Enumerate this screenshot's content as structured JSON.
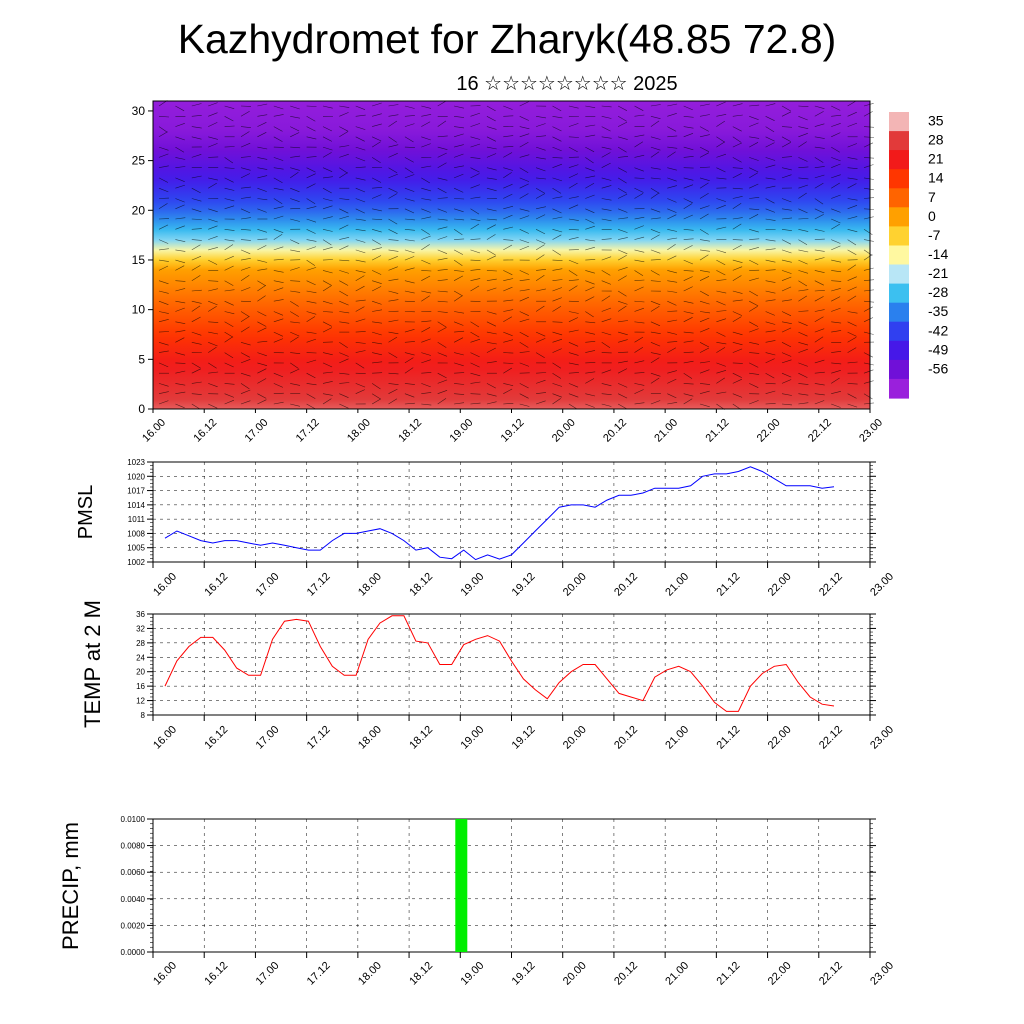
{
  "header": {
    "title": "Kazhydromet for Zharyk(48.85 72.8)",
    "subtitle": "16 ☆☆☆☆☆☆☆☆ 2025"
  },
  "time_ticks": [
    "16.00",
    "16.12",
    "17.00",
    "17.12",
    "18.00",
    "18.12",
    "19.00",
    "19.12",
    "20.00",
    "20.12",
    "21.00",
    "21.12",
    "22.00",
    "22.12",
    "23.00"
  ],
  "chart_data": [
    {
      "id": "cross-section",
      "type": "heatmap",
      "title": "Kazhydromet for Zharyk(48.85 72.8)",
      "subtitle": "16 ☆☆☆☆☆☆☆☆ 2025",
      "x_ticks": [
        "16.00",
        "16.12",
        "17.00",
        "17.12",
        "18.00",
        "18.12",
        "19.00",
        "19.12",
        "20.00",
        "20.12",
        "21.00",
        "21.12",
        "22.00",
        "22.12",
        "23.00"
      ],
      "y_ticks": [
        0,
        5,
        10,
        15,
        20,
        25,
        30
      ],
      "ylim": [
        0,
        31
      ],
      "xlabel": "",
      "ylabel": "",
      "colorbar": {
        "labels": [
          "35",
          "28",
          "21",
          "14",
          "7",
          "0",
          "-7",
          "-14",
          "-21",
          "-28",
          "-35",
          "-42",
          "-49",
          "-56"
        ],
        "values": [
          35,
          28,
          21,
          14,
          7,
          0,
          -7,
          -14,
          -21,
          -28,
          -35,
          -42,
          -49,
          -56
        ],
        "colors": [
          "#f3b5b5",
          "#e23a3a",
          "#f21a1a",
          "#ff3600",
          "#ff6400",
          "#ffa000",
          "#ffd230",
          "#fff8a0",
          "#b8e6f6",
          "#3cc0f0",
          "#2a80ee",
          "#3040f0",
          "#4618e8",
          "#7010d8",
          "#9a20dc"
        ]
      },
      "temperature_profile": {
        "height": [
          0,
          5,
          10,
          14,
          15.5,
          17,
          20,
          23,
          26,
          28,
          31
        ],
        "value": [
          30,
          20,
          8,
          0,
          -10,
          -24,
          -38,
          -48,
          -56,
          -60,
          -62
        ]
      },
      "overlay": "wind barbs"
    },
    {
      "id": "pmsl",
      "type": "line",
      "ylabel": "PMSL",
      "xlabel": "",
      "ylim": [
        1002,
        1023
      ],
      "y_ticks": [
        1002,
        1005,
        1008,
        1011,
        1014,
        1017,
        1020,
        1023
      ],
      "x_ticks": [
        "16.00",
        "16.12",
        "17.00",
        "17.12",
        "18.00",
        "18.12",
        "19.00",
        "19.12",
        "20.00",
        "20.12",
        "21.00",
        "21.12",
        "22.00",
        "22.12",
        "23.00"
      ],
      "color": "#0000ff",
      "x_hours": [
        0,
        3,
        6,
        9,
        12,
        15,
        18,
        21,
        24,
        27,
        30,
        33,
        36,
        39,
        42,
        45,
        48,
        51,
        54,
        57,
        60,
        63,
        66,
        69,
        72,
        75,
        78,
        81,
        84,
        87,
        90,
        93,
        96,
        99,
        102,
        105,
        108,
        111,
        114,
        117,
        120,
        123,
        126,
        129,
        132,
        135,
        138,
        141,
        144,
        147,
        150,
        153,
        156,
        159,
        162,
        165,
        168
      ],
      "values": [
        1007.0,
        1008.5,
        1007.5,
        1006.5,
        1006.0,
        1006.5,
        1006.5,
        1006.0,
        1005.5,
        1006.0,
        1005.5,
        1005.0,
        1004.5,
        1004.5,
        1006.5,
        1008.0,
        1008.0,
        1008.5,
        1009.0,
        1008.0,
        1006.5,
        1004.5,
        1005.0,
        1003.0,
        1002.7,
        1004.5,
        1002.5,
        1003.5,
        1002.6,
        1003.5,
        1006.0,
        1008.5,
        1011.0,
        1013.5,
        1014.0,
        1014.0,
        1013.5,
        1015.0,
        1016.0,
        1016.0,
        1016.5,
        1017.5,
        1017.5,
        1017.5,
        1018.0,
        1020.0,
        1020.5,
        1020.5,
        1021.0,
        1022.0,
        1021.0,
        1019.5,
        1018.0,
        1018.0,
        1018.0,
        1017.5,
        1017.8
      ]
    },
    {
      "id": "temp2m",
      "type": "line",
      "ylabel": "TEMP at 2 M",
      "xlabel": "",
      "ylim": [
        8,
        36
      ],
      "y_ticks": [
        8,
        12,
        16,
        20,
        24,
        28,
        32,
        36
      ],
      "x_ticks": [
        "16.00",
        "16.12",
        "17.00",
        "17.12",
        "18.00",
        "18.12",
        "19.00",
        "19.12",
        "20.00",
        "20.12",
        "21.00",
        "21.12",
        "22.00",
        "22.12",
        "23.00"
      ],
      "color": "#ff0000",
      "x_hours": [
        0,
        3,
        6,
        9,
        12,
        15,
        18,
        21,
        24,
        27,
        30,
        33,
        36,
        39,
        42,
        45,
        48,
        51,
        54,
        57,
        60,
        63,
        66,
        69,
        72,
        75,
        78,
        81,
        84,
        87,
        90,
        93,
        96,
        99,
        102,
        105,
        108,
        111,
        114,
        117,
        120,
        123,
        126,
        129,
        132,
        135,
        138,
        141,
        144,
        147,
        150,
        153,
        156,
        159,
        162,
        165,
        168
      ],
      "values": [
        16,
        23,
        27,
        29.5,
        29.5,
        26,
        21,
        19,
        19,
        29,
        34,
        34.5,
        34,
        27,
        21.5,
        19,
        19,
        29,
        33.5,
        35.5,
        35.5,
        28.5,
        28,
        22,
        22,
        27.5,
        29,
        30,
        28.5,
        23,
        18,
        15,
        12.5,
        17,
        20,
        22,
        22,
        18,
        14,
        13,
        12,
        18.5,
        20.5,
        21.5,
        20,
        16,
        11.5,
        9,
        9,
        16,
        19.5,
        21.5,
        22,
        17,
        13,
        11,
        10.5
      ]
    },
    {
      "id": "precip",
      "type": "bar",
      "ylabel": "PRECIP, mm",
      "xlabel": "",
      "ylim": [
        0,
        0.01
      ],
      "y_ticks": [
        "0.0000",
        "0.0020",
        "0.0040",
        "0.0060",
        "0.0080",
        "0.0100"
      ],
      "x_ticks": [
        "16.00",
        "16.12",
        "17.00",
        "17.12",
        "18.00",
        "18.12",
        "19.00",
        "19.12",
        "20.00",
        "20.12",
        "21.00",
        "21.12",
        "22.00",
        "22.12",
        "23.00"
      ],
      "color": "#00ee00",
      "x_hours": [
        72
      ],
      "values": [
        0.01
      ]
    }
  ]
}
